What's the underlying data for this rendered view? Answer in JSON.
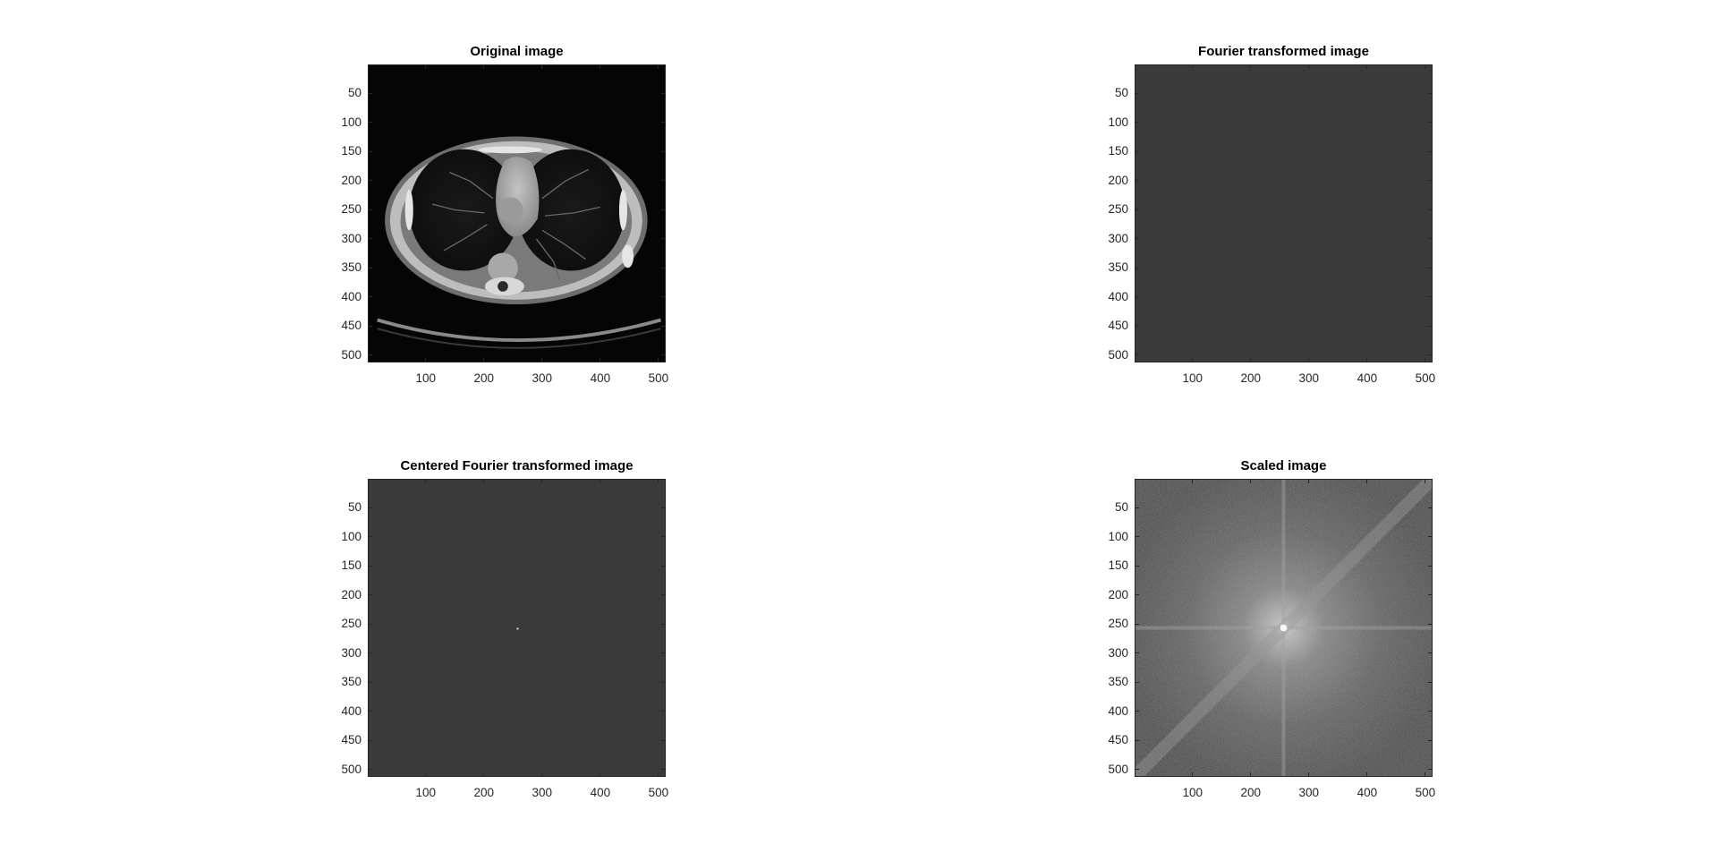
{
  "figure": {
    "background": "#ffffff",
    "layout": "2x2 subplots"
  },
  "chart_data": [
    {
      "type": "heatmap",
      "id": "original",
      "title": "Original image",
      "content": "axial chest CT slice (grayscale)",
      "colormap": "gray",
      "xlim": [
        0.5,
        512.5
      ],
      "ylim": [
        0.5,
        512.5
      ],
      "y_reversed": true,
      "xticks": [
        100,
        200,
        300,
        400,
        500
      ],
      "yticks": [
        50,
        100,
        150,
        200,
        250,
        300,
        350,
        400,
        450,
        500
      ],
      "xticklabels": [
        "100",
        "200",
        "300",
        "400",
        "500"
      ],
      "yticklabels": [
        "50",
        "100",
        "150",
        "200",
        "250",
        "300",
        "350",
        "400",
        "450",
        "500"
      ],
      "background_color": "#050505"
    },
    {
      "type": "heatmap",
      "id": "fourier",
      "title": "Fourier transformed image",
      "content": "uniform dark gray field (FFT magnitude, not shifted)",
      "colormap": "gray",
      "xlim": [
        0.5,
        512.5
      ],
      "ylim": [
        0.5,
        512.5
      ],
      "y_reversed": true,
      "xticks": [
        100,
        200,
        300,
        400,
        500
      ],
      "yticks": [
        50,
        100,
        150,
        200,
        250,
        300,
        350,
        400,
        450,
        500
      ],
      "xticklabels": [
        "100",
        "200",
        "300",
        "400",
        "500"
      ],
      "yticklabels": [
        "50",
        "100",
        "150",
        "200",
        "250",
        "300",
        "350",
        "400",
        "450",
        "500"
      ],
      "background_color": "#3a3a3a"
    },
    {
      "type": "heatmap",
      "id": "centered",
      "title": "Centered Fourier transformed image",
      "content": "uniform dark gray field with a single bright point at the center",
      "colormap": "gray",
      "xlim": [
        0.5,
        512.5
      ],
      "ylim": [
        0.5,
        512.5
      ],
      "y_reversed": true,
      "bright_point": [
        257,
        257
      ],
      "xticks": [
        100,
        200,
        300,
        400,
        500
      ],
      "yticks": [
        50,
        100,
        150,
        200,
        250,
        300,
        350,
        400,
        450,
        500
      ],
      "xticklabels": [
        "100",
        "200",
        "300",
        "400",
        "500"
      ],
      "yticklabels": [
        "50",
        "100",
        "150",
        "200",
        "250",
        "300",
        "350",
        "400",
        "450",
        "500"
      ],
      "background_color": "#3a3a3a"
    },
    {
      "type": "heatmap",
      "id": "scaled",
      "title": "Scaled image",
      "content": "log-scaled centered FFT magnitude: bright center, diagonal streaks, noisy gray texture",
      "colormap": "gray",
      "xlim": [
        0.5,
        512.5
      ],
      "ylim": [
        0.5,
        512.5
      ],
      "y_reversed": true,
      "xticks": [
        100,
        200,
        300,
        400,
        500
      ],
      "yticks": [
        50,
        100,
        150,
        200,
        250,
        300,
        350,
        400,
        450,
        500
      ],
      "xticklabels": [
        "100",
        "200",
        "300",
        "400",
        "500"
      ],
      "yticklabels": [
        "50",
        "100",
        "150",
        "200",
        "250",
        "300",
        "350",
        "400",
        "450",
        "500"
      ],
      "background_color": "#4a4a4a"
    }
  ]
}
